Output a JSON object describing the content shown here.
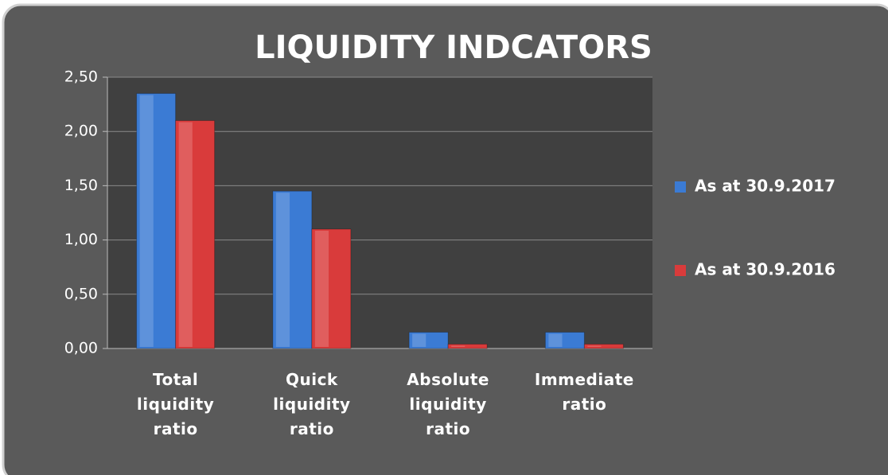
{
  "chart_data": {
    "type": "bar",
    "title": "LIQUIDITY INDCATORS",
    "categories": [
      "Total liquidity ratio",
      "Quick liquidity ratio",
      "Absolute liquidity ratio",
      "Immediate ratio"
    ],
    "series": [
      {
        "name": "As at 30.9.2017",
        "color": "#3b7bd4",
        "values": [
          2.35,
          1.45,
          0.15,
          0.15
        ]
      },
      {
        "name": "As at 30.9.2016",
        "color": "#d93b3b",
        "values": [
          2.1,
          1.1,
          0.04,
          0.04
        ]
      }
    ],
    "ylim": [
      0,
      2.5
    ],
    "yticks": [
      {
        "value": 0,
        "label": "0,00"
      },
      {
        "value": 0.5,
        "label": "0,50"
      },
      {
        "value": 1,
        "label": "1,00"
      },
      {
        "value": 1.5,
        "label": "1,50"
      },
      {
        "value": 2,
        "label": "2,00"
      },
      {
        "value": 2.5,
        "label": "2,50"
      }
    ],
    "grid": true,
    "legend": "right"
  }
}
